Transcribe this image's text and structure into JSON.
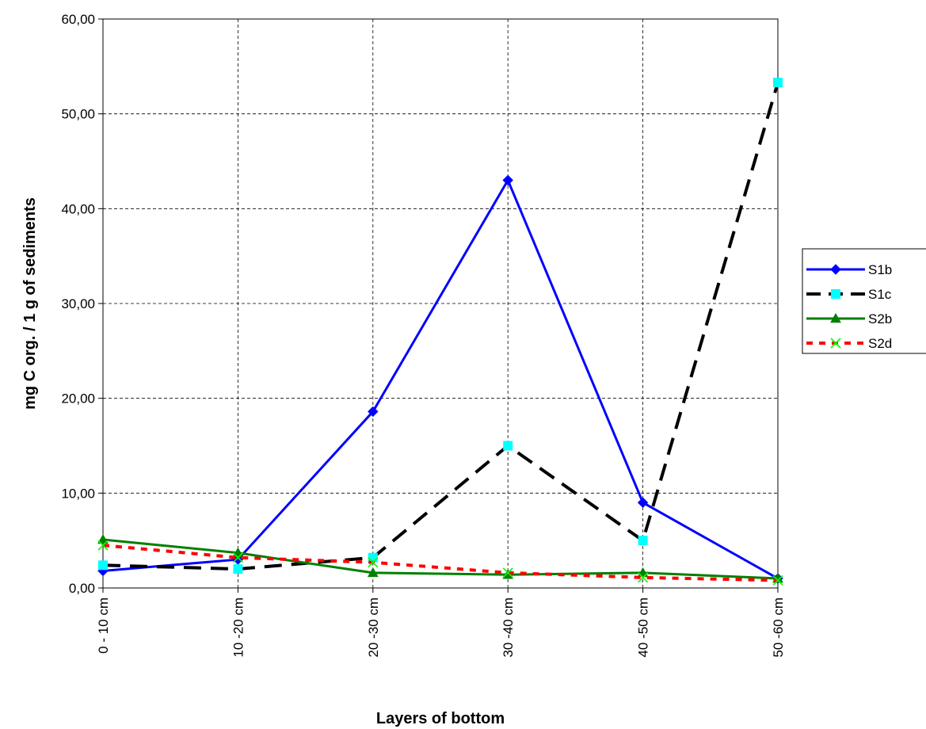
{
  "chart_data": {
    "type": "line",
    "xlabel": "Layers of bottom",
    "ylabel": "mg C org. / 1 g of sediments",
    "categories": [
      "0 - 10 cm",
      "10 -20 cm",
      "20 -30 cm",
      "30 -40 cm",
      "40 -50 cm",
      "50 -60 cm"
    ],
    "ylim": [
      0,
      60
    ],
    "yticks": [
      "0,00",
      "10,00",
      "20,00",
      "30,00",
      "40,00",
      "50,00",
      "60,00"
    ],
    "grid": true,
    "legend_position": "right",
    "series": [
      {
        "name": "S1b",
        "values": [
          1.8,
          3.0,
          18.6,
          43.0,
          9.0,
          1.0
        ],
        "color": "#0000ff",
        "marker": "diamond",
        "line_style": "solid"
      },
      {
        "name": "S1c",
        "values": [
          2.4,
          2.0,
          3.2,
          15.0,
          5.0,
          53.3
        ],
        "color": "#000000",
        "marker_color": "#00ffff",
        "marker": "square",
        "line_style": "dashed"
      },
      {
        "name": "S2b",
        "values": [
          5.1,
          3.7,
          1.6,
          1.4,
          1.6,
          1.0
        ],
        "color": "#008000",
        "marker": "triangle",
        "line_style": "solid"
      },
      {
        "name": "S2d",
        "values": [
          4.5,
          3.2,
          2.7,
          1.6,
          1.1,
          0.8
        ],
        "color": "#ff0000",
        "marker_color": "#00ff00",
        "marker": "x",
        "line_style": "dotted"
      }
    ]
  }
}
